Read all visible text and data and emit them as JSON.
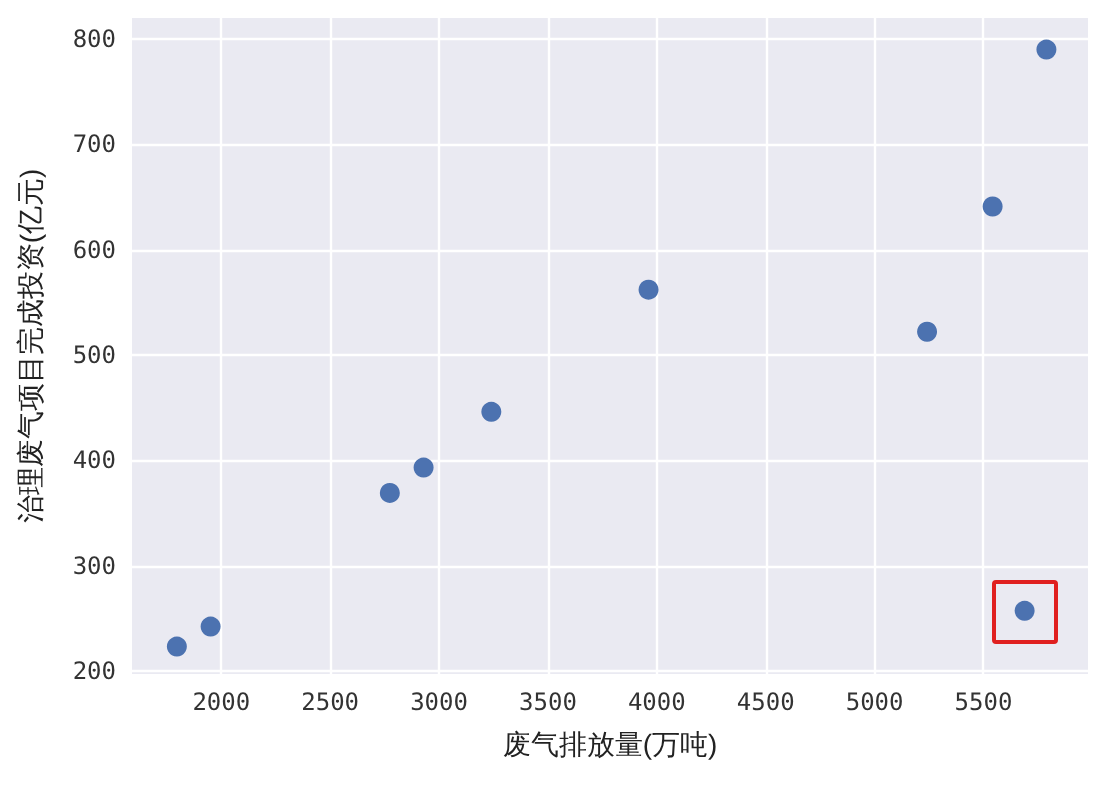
{
  "chart_data": {
    "type": "scatter",
    "xlabel": "废气排放量(万吨)",
    "ylabel": "治理废气项目完成投资(亿元)",
    "x": [
      1796,
      1951,
      2774,
      2929,
      3240,
      3962,
      5241,
      5542,
      5689,
      5789
    ],
    "values": [
      223,
      242,
      369,
      393,
      446,
      562,
      522,
      641,
      257,
      790
    ],
    "color": "#4c72b0",
    "marker": "circle",
    "grid": true,
    "xlim": [
      1590,
      5980
    ],
    "xticks": [
      2000,
      2500,
      3000,
      3500,
      4000,
      4500,
      5000,
      5500
    ],
    "ylim": [
      197,
      820
    ],
    "yticks": [
      200,
      300,
      400,
      500,
      600,
      700,
      800
    ]
  }
}
